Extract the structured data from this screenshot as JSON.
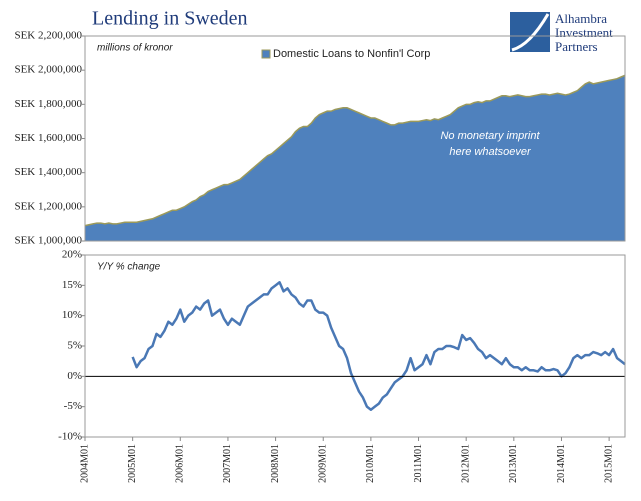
{
  "title": "Lending in Sweden",
  "logo": [
    "Alhambra",
    "Investment",
    "Partners"
  ],
  "chart_data": [
    {
      "type": "area",
      "subtitle": "millions of kronor",
      "annotation": [
        "No monetary imprint",
        "here whatsoever"
      ],
      "legend": "top-center",
      "series": [
        {
          "name": "Domestic Loans to Nonfin'l Corp",
          "color": "#4f81bd",
          "edge": "#9c9a5a",
          "values": [
            1090000,
            1095000,
            1100000,
            1105000,
            1105000,
            1100000,
            1105000,
            1100000,
            1100000,
            1105000,
            1110000,
            1110000,
            1110000,
            1110000,
            1115000,
            1120000,
            1125000,
            1130000,
            1140000,
            1150000,
            1160000,
            1170000,
            1180000,
            1180000,
            1190000,
            1200000,
            1215000,
            1230000,
            1240000,
            1260000,
            1270000,
            1290000,
            1300000,
            1310000,
            1320000,
            1330000,
            1330000,
            1340000,
            1350000,
            1360000,
            1380000,
            1400000,
            1420000,
            1440000,
            1460000,
            1480000,
            1500000,
            1510000,
            1530000,
            1550000,
            1570000,
            1590000,
            1610000,
            1640000,
            1660000,
            1670000,
            1670000,
            1690000,
            1720000,
            1740000,
            1750000,
            1760000,
            1760000,
            1770000,
            1775000,
            1780000,
            1780000,
            1770000,
            1760000,
            1750000,
            1740000,
            1730000,
            1720000,
            1720000,
            1710000,
            1700000,
            1690000,
            1680000,
            1680000,
            1690000,
            1690000,
            1695000,
            1700000,
            1700000,
            1700000,
            1705000,
            1710000,
            1705000,
            1715000,
            1710000,
            1720000,
            1730000,
            1740000,
            1760000,
            1780000,
            1790000,
            1800000,
            1800000,
            1810000,
            1815000,
            1810000,
            1820000,
            1820000,
            1830000,
            1840000,
            1850000,
            1850000,
            1845000,
            1850000,
            1855000,
            1850000,
            1845000,
            1845000,
            1850000,
            1855000,
            1860000,
            1860000,
            1855000,
            1860000,
            1865000,
            1860000,
            1855000,
            1860000,
            1870000,
            1880000,
            1900000,
            1920000,
            1930000,
            1920000,
            1925000,
            1930000,
            1935000,
            1940000,
            1945000,
            1950000,
            1960000,
            1970000
          ]
        }
      ],
      "ylim": [
        1000000,
        2200000
      ],
      "yticks": [
        {
          "value": 1000000,
          "label": "SEK 1,000,000"
        },
        {
          "value": 1200000,
          "label": "SEK 1,200,000"
        },
        {
          "value": 1400000,
          "label": "SEK 1,400,000"
        },
        {
          "value": 1600000,
          "label": "SEK 1,600,000"
        },
        {
          "value": 1800000,
          "label": "SEK 1,800,000"
        },
        {
          "value": 2000000,
          "label": "SEK 2,000,000"
        },
        {
          "value": 2200000,
          "label": "SEK 2,200,000"
        }
      ]
    },
    {
      "type": "line",
      "subtitle": "Y/Y % change",
      "categories": [
        "2004M01",
        null,
        null,
        null,
        null,
        null,
        null,
        null,
        null,
        null,
        null,
        null,
        "2005M01",
        null,
        null,
        null,
        null,
        null,
        null,
        null,
        null,
        null,
        null,
        null,
        "2006M01",
        null,
        null,
        null,
        null,
        null,
        null,
        null,
        null,
        null,
        null,
        null,
        "2007M01",
        null,
        null,
        null,
        null,
        null,
        null,
        null,
        null,
        null,
        null,
        null,
        "2008M01",
        null,
        null,
        null,
        null,
        null,
        null,
        null,
        null,
        null,
        null,
        null,
        "2009M01",
        null,
        null,
        null,
        null,
        null,
        null,
        null,
        null,
        null,
        null,
        null,
        "2010M01",
        null,
        null,
        null,
        null,
        null,
        null,
        null,
        null,
        null,
        null,
        null,
        "2011M01",
        null,
        null,
        null,
        null,
        null,
        null,
        null,
        null,
        null,
        null,
        null,
        "2012M01",
        null,
        null,
        null,
        null,
        null,
        null,
        null,
        null,
        null,
        null,
        null,
        "2013M01",
        null,
        null,
        null,
        null,
        null,
        null,
        null,
        null,
        null,
        null,
        null,
        "2014M01",
        null,
        null,
        null,
        null,
        null,
        null,
        null,
        null,
        null,
        null,
        null,
        "2015M01",
        null,
        null,
        null,
        null
      ],
      "series": [
        {
          "name": "Y/Y % change",
          "color": "#4a78b5",
          "values": [
            null,
            null,
            null,
            null,
            null,
            null,
            null,
            null,
            null,
            null,
            null,
            null,
            3.2,
            1.5,
            2.5,
            3.0,
            4.5,
            5.0,
            7.0,
            6.5,
            7.5,
            9.0,
            8.5,
            9.5,
            11.0,
            9.0,
            10.0,
            10.5,
            11.5,
            11.0,
            12.0,
            12.5,
            10.0,
            10.5,
            11.0,
            9.5,
            8.5,
            9.5,
            9.0,
            8.5,
            10.0,
            11.5,
            12.0,
            12.5,
            13.0,
            13.5,
            13.5,
            14.5,
            15.0,
            15.5,
            14.0,
            14.5,
            13.5,
            13.0,
            12.0,
            11.5,
            12.5,
            12.5,
            11.0,
            10.5,
            10.5,
            10.0,
            8.0,
            6.5,
            5.0,
            4.5,
            3.0,
            0.5,
            -1.0,
            -2.5,
            -3.5,
            -5.0,
            -5.5,
            -5.0,
            -4.5,
            -3.5,
            -3.0,
            -2.0,
            -1.0,
            -0.5,
            0.0,
            1.0,
            3.0,
            1.0,
            1.5,
            2.0,
            3.5,
            2.0,
            4.0,
            4.5,
            4.5,
            5.0,
            5.0,
            4.8,
            4.5,
            6.8,
            6.0,
            6.3,
            5.5,
            4.5,
            4.0,
            3.0,
            3.5,
            3.0,
            2.5,
            2.0,
            3.0,
            2.0,
            1.5,
            1.5,
            1.0,
            1.5,
            1.0,
            1.0,
            0.8,
            1.5,
            1.0,
            1.0,
            1.2,
            1.0,
            0.0,
            0.5,
            1.5,
            3.0,
            3.5,
            3.0,
            3.5,
            3.5,
            4.0,
            3.8,
            3.5,
            4.0,
            3.5,
            4.5,
            3.0,
            2.5,
            2.0
          ]
        }
      ],
      "ylim": [
        -10,
        20
      ],
      "yticks": [
        {
          "value": -10,
          "label": "-10%"
        },
        {
          "value": -5,
          "label": "-5%"
        },
        {
          "value": 0,
          "label": "0%"
        },
        {
          "value": 5,
          "label": "5%"
        },
        {
          "value": 10,
          "label": "10%"
        },
        {
          "value": 15,
          "label": "15%"
        },
        {
          "value": 20,
          "label": "20%"
        }
      ],
      "zero_line": true
    }
  ]
}
